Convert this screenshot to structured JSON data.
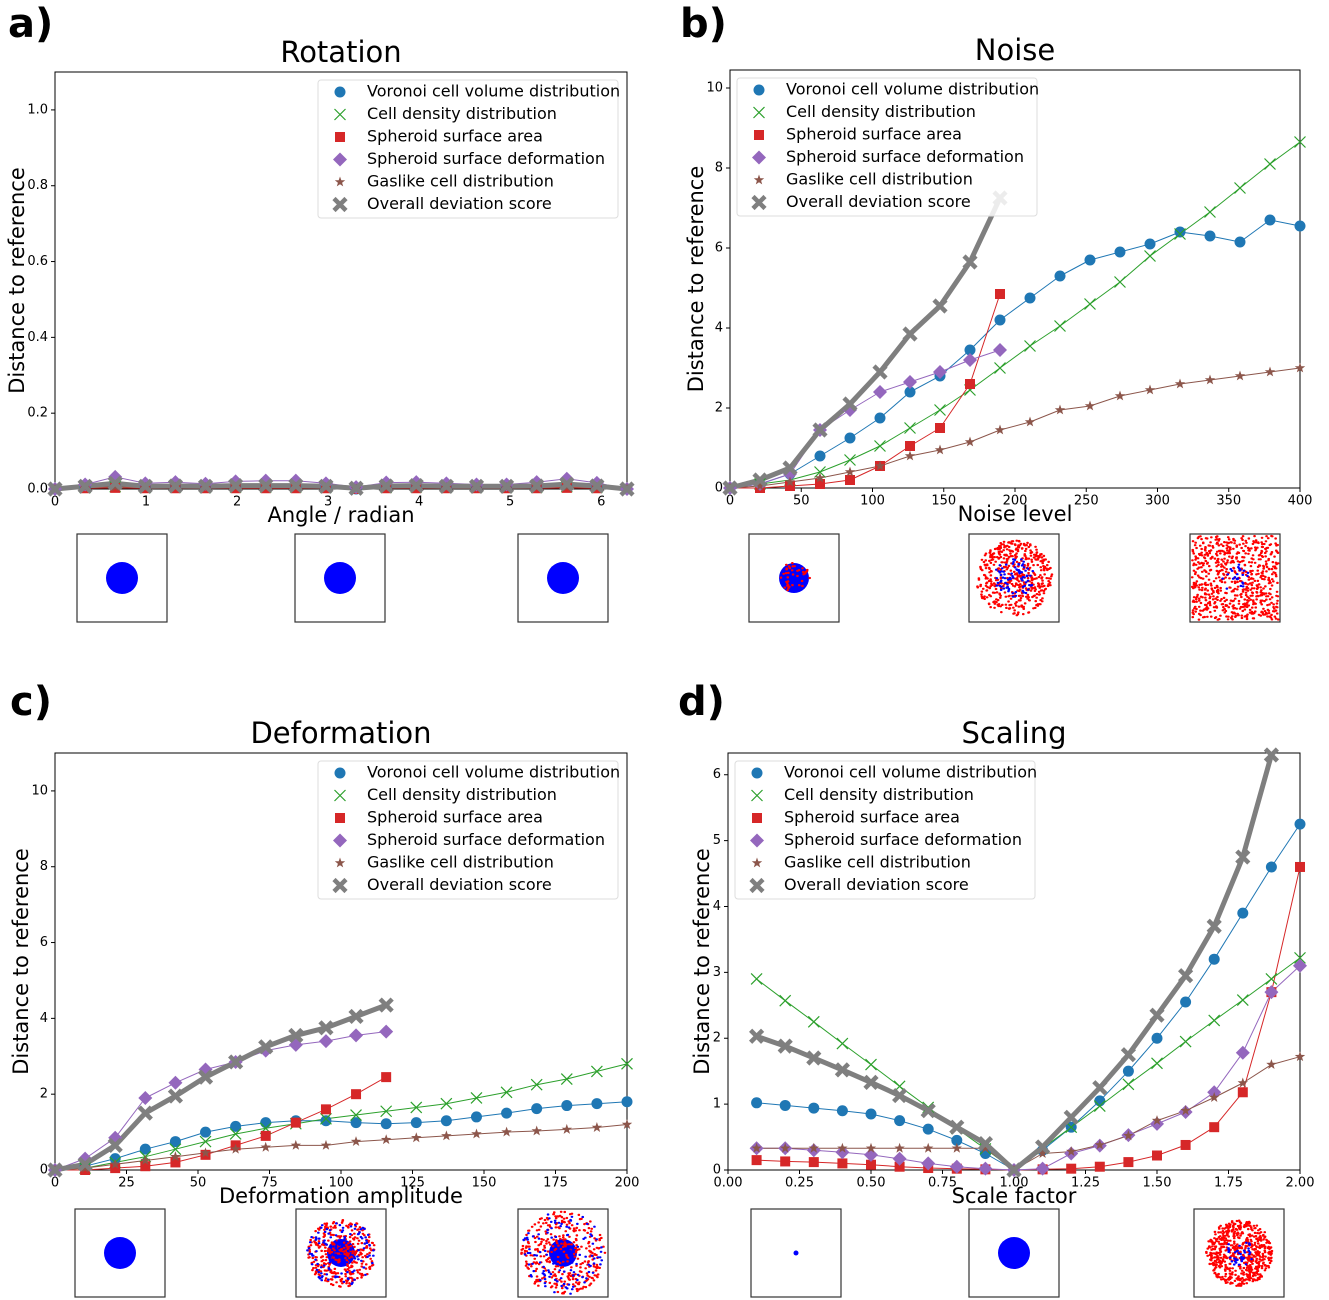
{
  "chart_data": [
    {
      "type": "line",
      "label": "a)",
      "title": "Rotation",
      "xlabel": "Angle / radian",
      "ylabel": "Distance to reference",
      "legend": "upper right",
      "x": [
        0,
        0.331,
        0.661,
        0.992,
        1.323,
        1.653,
        1.984,
        2.315,
        2.645,
        2.976,
        3.307,
        3.638,
        3.968,
        4.299,
        4.63,
        4.96,
        5.291,
        5.622,
        5.952,
        6.283
      ],
      "xlim": [
        0,
        6.283
      ],
      "xticks": [
        0,
        1,
        2,
        3,
        4,
        5,
        6
      ],
      "ylim": [
        0,
        1.1
      ],
      "yticks": [
        {
          "value": 0,
          "label": "0.0"
        },
        {
          "value": 0.2,
          "label": "0.2"
        },
        {
          "value": 0.4,
          "label": "0.4"
        },
        {
          "value": 0.6,
          "label": "0.6"
        },
        {
          "value": 0.8,
          "label": "0.8"
        },
        {
          "value": 1.0,
          "label": "1.0"
        }
      ],
      "series": [
        {
          "name": "Voronoi cell volume distribution",
          "color": "#1f77b4",
          "marker": "circle",
          "values": [
            0,
            0.005,
            0.008,
            0.005,
            0.006,
            0.005,
            0.006,
            0.006,
            0.006,
            0.005,
            0,
            0.005,
            0.006,
            0.005,
            0.005,
            0.005,
            0.005,
            0.008,
            0.005,
            0
          ]
        },
        {
          "name": "Cell density distribution",
          "color": "#2ca02c",
          "marker": "x",
          "values": [
            0,
            0.004,
            0.006,
            0.004,
            0.005,
            0.004,
            0.005,
            0.005,
            0.005,
            0.004,
            0,
            0.004,
            0.005,
            0.004,
            0.004,
            0.004,
            0.004,
            0.006,
            0.004,
            0
          ]
        },
        {
          "name": "Spheroid surface area",
          "color": "#d62728",
          "marker": "square",
          "values": [
            0,
            0.002,
            0.003,
            0.002,
            0.002,
            0.002,
            0.002,
            0.002,
            0.002,
            0.002,
            0,
            0.002,
            0.002,
            0.002,
            0.002,
            0.002,
            0.002,
            0.003,
            0.002,
            0
          ]
        },
        {
          "name": "Spheroid surface deformation",
          "color": "#9467bd",
          "marker": "diamond",
          "values": [
            0,
            0.012,
            0.032,
            0.015,
            0.018,
            0.014,
            0.02,
            0.022,
            0.022,
            0.015,
            0.005,
            0.017,
            0.018,
            0.015,
            0.012,
            0.012,
            0.018,
            0.027,
            0.016,
            0
          ]
        },
        {
          "name": "Gaslike cell distribution",
          "color": "#8c564b",
          "marker": "star",
          "values": [
            0,
            0.004,
            0.006,
            0.004,
            0.005,
            0.004,
            0.005,
            0.005,
            0.005,
            0.004,
            0,
            0.004,
            0.005,
            0.004,
            0.004,
            0.004,
            0.004,
            0.006,
            0.004,
            0
          ]
        },
        {
          "name": "Overall deviation score",
          "color": "#7f7f7f",
          "marker": "X",
          "values": [
            0,
            0.007,
            0.015,
            0.007,
            0.008,
            0.007,
            0.009,
            0.009,
            0.009,
            0.007,
            0.002,
            0.008,
            0.009,
            0.007,
            0.007,
            0.007,
            0.008,
            0.013,
            0.008,
            0
          ]
        }
      ]
    },
    {
      "type": "line",
      "label": "b)",
      "title": "Noise",
      "xlabel": "Noise level",
      "ylabel": "Distance to reference",
      "legend": "upper left",
      "x": [
        0,
        21.05,
        42.11,
        63.16,
        84.21,
        105.26,
        126.32,
        147.37,
        168.42,
        189.47,
        210.53,
        231.58,
        252.63,
        273.68,
        294.74,
        315.79,
        336.84,
        357.89,
        378.95,
        400
      ],
      "xlim": [
        0,
        400
      ],
      "xticks": [
        0,
        50,
        100,
        150,
        200,
        250,
        300,
        350,
        400
      ],
      "ylim": [
        0,
        10.45
      ],
      "yticks": [
        0,
        2,
        4,
        6,
        8,
        10
      ],
      "series": [
        {
          "name": "Voronoi cell volume distribution",
          "color": "#1f77b4",
          "marker": "circle",
          "values": [
            0,
            0.1,
            0.35,
            0.8,
            1.25,
            1.75,
            2.4,
            2.8,
            3.45,
            4.2,
            4.75,
            5.3,
            5.7,
            5.9,
            6.1,
            6.4,
            6.3,
            6.15,
            6.7,
            6.55
          ]
        },
        {
          "name": "Cell density distribution",
          "color": "#2ca02c",
          "marker": "x",
          "values": [
            0,
            0.1,
            0.2,
            0.4,
            0.7,
            1.05,
            1.5,
            1.95,
            2.45,
            3.0,
            3.55,
            4.05,
            4.6,
            5.15,
            5.8,
            6.35,
            6.9,
            7.5,
            8.1,
            8.65
          ]
        },
        {
          "name": "Spheroid surface area",
          "color": "#d62728",
          "marker": "square",
          "values": [
            0,
            0,
            0.05,
            0.1,
            0.2,
            0.55,
            1.05,
            1.5,
            2.6,
            4.85,
            null,
            null,
            null,
            null,
            null,
            null,
            null,
            null,
            null,
            null
          ]
        },
        {
          "name": "Spheroid surface deformation",
          "color": "#9467bd",
          "marker": "diamond",
          "values": [
            0,
            0.1,
            0.35,
            1.45,
            1.95,
            2.4,
            2.65,
            2.9,
            3.2,
            3.45,
            null,
            null,
            null,
            null,
            null,
            null,
            null,
            null,
            null,
            null
          ]
        },
        {
          "name": "Gaslike cell distribution",
          "color": "#8c564b",
          "marker": "star",
          "values": [
            0,
            0.05,
            0.15,
            0.25,
            0.4,
            0.55,
            0.8,
            0.95,
            1.15,
            1.45,
            1.65,
            1.95,
            2.05,
            2.3,
            2.45,
            2.6,
            2.7,
            2.8,
            2.9,
            3.0
          ]
        },
        {
          "name": "Overall deviation score",
          "color": "#7f7f7f",
          "marker": "X",
          "values": [
            0,
            0.2,
            0.5,
            1.45,
            2.1,
            2.9,
            3.85,
            4.55,
            5.65,
            7.25,
            null,
            null,
            null,
            null,
            null,
            null,
            null,
            null,
            null,
            null
          ]
        }
      ]
    },
    {
      "type": "line",
      "label": "c)",
      "title": "Deformation",
      "xlabel": "Deformation amplitude",
      "ylabel": "Distance to reference",
      "legend": "upper right",
      "x": [
        0,
        10.53,
        21.05,
        31.58,
        42.11,
        52.63,
        63.16,
        73.68,
        84.21,
        94.74,
        105.26,
        115.79,
        126.32,
        136.84,
        147.37,
        157.89,
        168.42,
        178.95,
        189.47,
        200
      ],
      "xlim": [
        0,
        200
      ],
      "xticks": [
        0,
        25,
        50,
        75,
        100,
        125,
        150,
        175,
        200
      ],
      "ylim": [
        0,
        11
      ],
      "yticks": [
        0,
        2,
        4,
        6,
        8,
        10
      ],
      "series": [
        {
          "name": "Voronoi cell volume distribution",
          "color": "#1f77b4",
          "marker": "circle",
          "values": [
            0,
            0.1,
            0.3,
            0.55,
            0.75,
            1.0,
            1.15,
            1.25,
            1.3,
            1.3,
            1.25,
            1.22,
            1.25,
            1.3,
            1.4,
            1.5,
            1.62,
            1.7,
            1.75,
            1.8
          ]
        },
        {
          "name": "Cell density distribution",
          "color": "#2ca02c",
          "marker": "x",
          "values": [
            0,
            0.05,
            0.2,
            0.35,
            0.55,
            0.75,
            0.95,
            1.1,
            1.22,
            1.35,
            1.45,
            1.55,
            1.65,
            1.75,
            1.9,
            2.05,
            2.25,
            2.4,
            2.6,
            2.8
          ]
        },
        {
          "name": "Spheroid surface area",
          "color": "#d62728",
          "marker": "square",
          "values": [
            0,
            0,
            0.05,
            0.1,
            0.2,
            0.4,
            0.65,
            0.9,
            1.25,
            1.6,
            2.0,
            2.45,
            null,
            null,
            null,
            null,
            null,
            null,
            null,
            null
          ]
        },
        {
          "name": "Spheroid surface deformation",
          "color": "#9467bd",
          "marker": "diamond",
          "values": [
            0,
            0.3,
            0.85,
            1.9,
            2.3,
            2.65,
            2.85,
            3.15,
            3.3,
            3.4,
            3.55,
            3.65,
            null,
            null,
            null,
            null,
            null,
            null,
            null,
            null
          ]
        },
        {
          "name": "Gaslike cell distribution",
          "color": "#8c564b",
          "marker": "star",
          "values": [
            0,
            0.05,
            0.15,
            0.25,
            0.35,
            0.45,
            0.55,
            0.6,
            0.65,
            0.65,
            0.75,
            0.8,
            0.85,
            0.9,
            0.95,
            1.0,
            1.03,
            1.07,
            1.12,
            1.2
          ]
        },
        {
          "name": "Overall deviation score",
          "color": "#7f7f7f",
          "marker": "X",
          "values": [
            0,
            0.15,
            0.65,
            1.5,
            1.95,
            2.45,
            2.85,
            3.25,
            3.55,
            3.75,
            4.05,
            4.35,
            null,
            null,
            null,
            null,
            null,
            null,
            null,
            null
          ]
        }
      ]
    },
    {
      "type": "line",
      "label": "d)",
      "title": "Scaling",
      "xlabel": "Scale factor",
      "ylabel": "Distance to reference",
      "legend": "upper left",
      "x": [
        0.1,
        0.2,
        0.3,
        0.4,
        0.5,
        0.6,
        0.7,
        0.8,
        0.9,
        1.0,
        1.1,
        1.2,
        1.3,
        1.4,
        1.5,
        1.6,
        1.7,
        1.8,
        1.9,
        2.0
      ],
      "xlim": [
        0,
        2
      ],
      "xticks": [
        {
          "value": 0,
          "label": "0.00"
        },
        {
          "value": 0.25,
          "label": "0.25"
        },
        {
          "value": 0.5,
          "label": "0.50"
        },
        {
          "value": 0.75,
          "label": "0.75"
        },
        {
          "value": 1,
          "label": "1.00"
        },
        {
          "value": 1.25,
          "label": "1.25"
        },
        {
          "value": 1.5,
          "label": "1.50"
        },
        {
          "value": 1.75,
          "label": "1.75"
        },
        {
          "value": 2,
          "label": "2.00"
        }
      ],
      "ylim": [
        0,
        6.33
      ],
      "yticks": [
        0,
        1,
        2,
        3,
        4,
        5,
        6
      ],
      "series": [
        {
          "name": "Voronoi cell volume distribution",
          "color": "#1f77b4",
          "marker": "circle",
          "values": [
            1.02,
            0.98,
            0.94,
            0.9,
            0.85,
            0.75,
            0.62,
            0.45,
            0.25,
            0,
            0.3,
            0.65,
            1.05,
            1.5,
            2.0,
            2.55,
            3.2,
            3.9,
            4.6,
            5.25
          ]
        },
        {
          "name": "Cell density distribution",
          "color": "#2ca02c",
          "marker": "x",
          "values": [
            2.9,
            2.57,
            2.25,
            1.92,
            1.6,
            1.27,
            0.95,
            0.63,
            0.32,
            0,
            0.33,
            0.65,
            0.97,
            1.3,
            1.62,
            1.95,
            2.27,
            2.58,
            2.9,
            3.22
          ]
        },
        {
          "name": "Spheroid surface area",
          "color": "#d62728",
          "marker": "square",
          "values": [
            0.15,
            0.13,
            0.12,
            0.1,
            0.08,
            0.05,
            0.03,
            0.02,
            0.01,
            0,
            0.01,
            0.02,
            0.05,
            0.12,
            0.22,
            0.38,
            0.65,
            1.18,
            2.7,
            4.6
          ]
        },
        {
          "name": "Spheroid surface deformation",
          "color": "#9467bd",
          "marker": "diamond",
          "values": [
            0.33,
            0.33,
            0.3,
            0.27,
            0.23,
            0.17,
            0.1,
            0.05,
            0.02,
            0,
            0.02,
            0.25,
            0.37,
            0.53,
            0.7,
            0.88,
            1.18,
            1.78,
            2.7,
            3.1
          ]
        },
        {
          "name": "Gaslike cell distribution",
          "color": "#8c564b",
          "marker": "star",
          "values": [
            0.33,
            0.33,
            0.33,
            0.33,
            0.33,
            0.33,
            0.33,
            0.33,
            0.33,
            0,
            0.25,
            0.28,
            0.38,
            0.52,
            0.75,
            0.9,
            1.1,
            1.32,
            1.6,
            1.72
          ]
        },
        {
          "name": "Overall deviation score",
          "color": "#7f7f7f",
          "marker": "X",
          "values": [
            2.03,
            1.88,
            1.7,
            1.52,
            1.33,
            1.13,
            0.9,
            0.65,
            0.4,
            0,
            0.35,
            0.8,
            1.25,
            1.75,
            2.35,
            2.95,
            3.7,
            4.75,
            6.3,
            null
          ]
        }
      ]
    }
  ]
}
